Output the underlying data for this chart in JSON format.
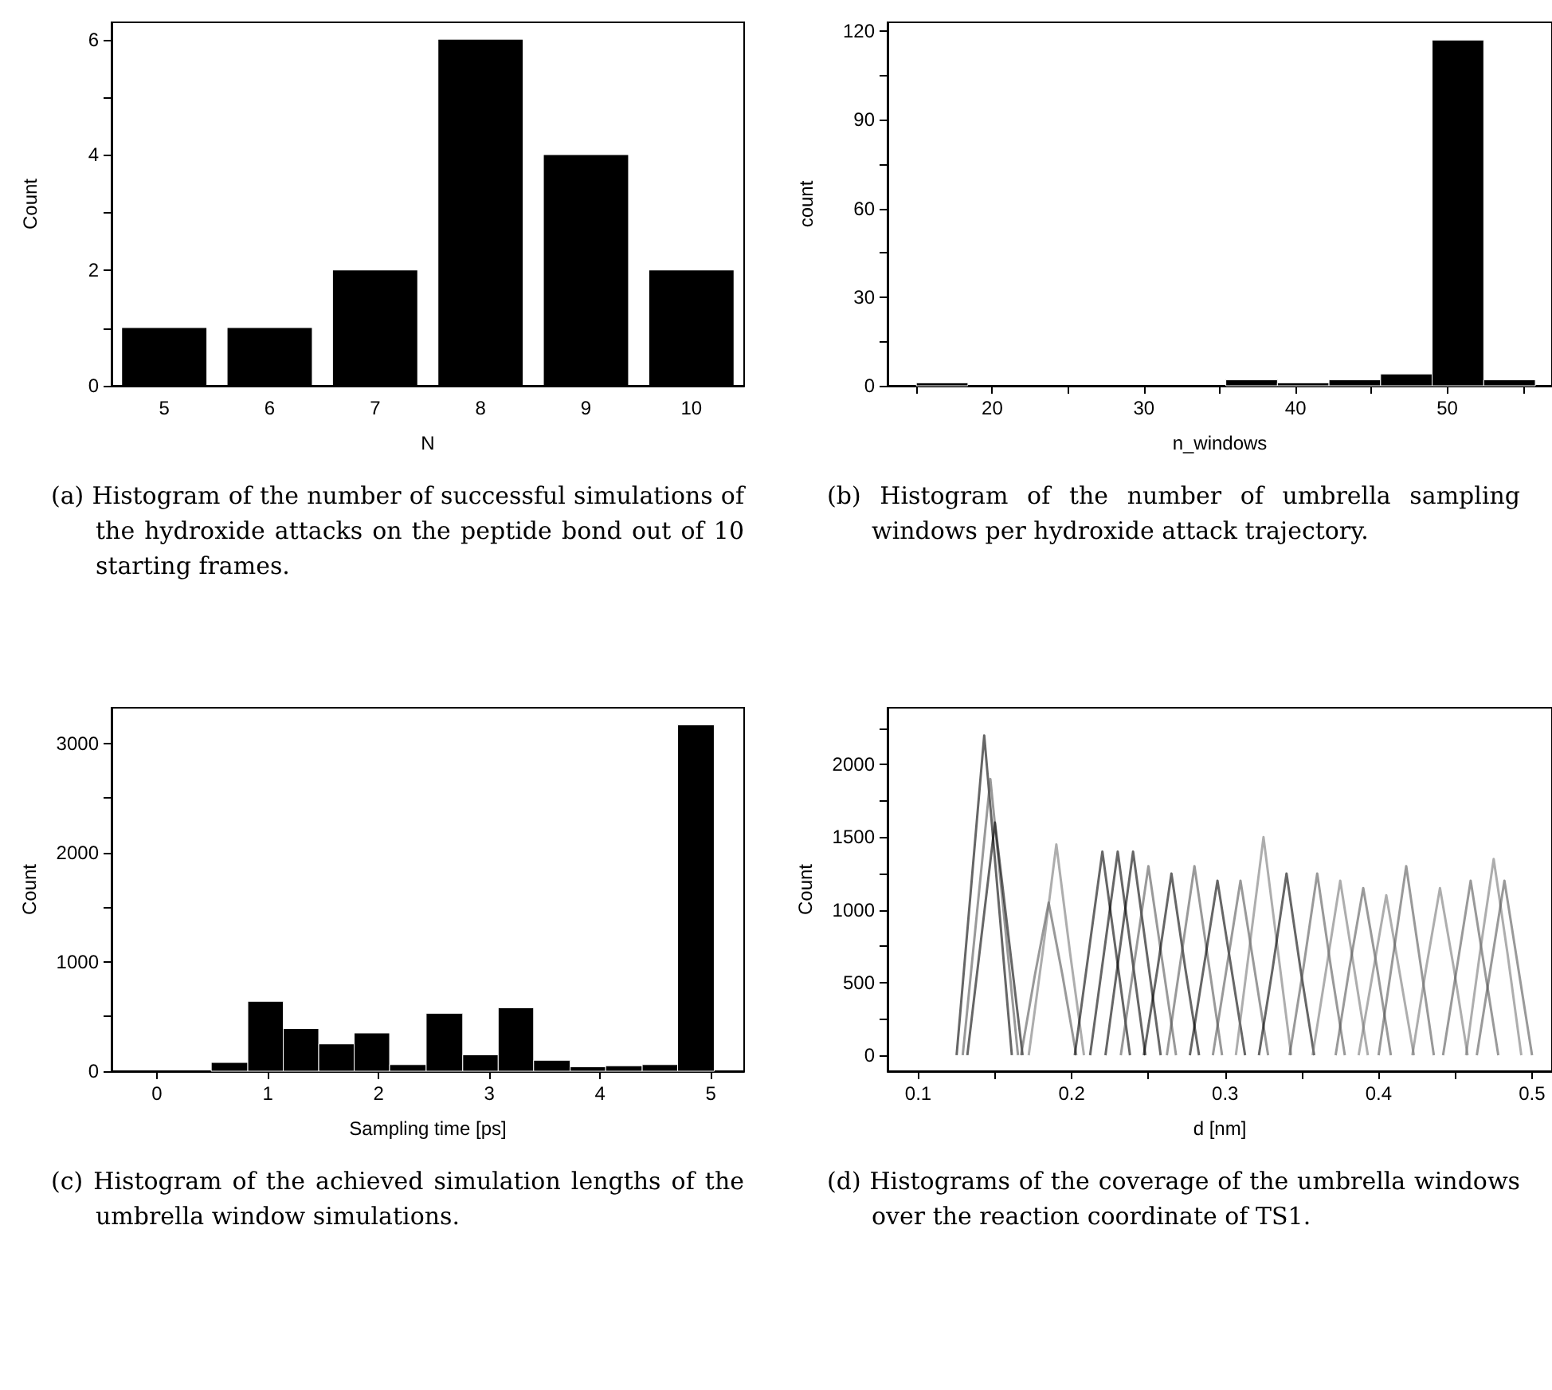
{
  "chart_data": [
    {
      "type": "bar",
      "xlabel": "N",
      "ylabel": "Count",
      "categories": [
        "5",
        "6",
        "7",
        "8",
        "9",
        "10"
      ],
      "values": [
        1,
        1,
        2,
        6,
        4,
        2
      ],
      "color": "#000000",
      "ylim": [
        0,
        6.3
      ],
      "yticks": [
        0,
        {
          "value": 1,
          "label": null
        },
        2,
        {
          "value": 3,
          "label": null
        },
        4,
        {
          "value": 5,
          "label": null
        },
        6
      ],
      "annotations": [
        "(a) Histogram of the number of successful simulations of the hydroxide attacks on the peptide bond out of 10 starting frames."
      ]
    },
    {
      "type": "histogram",
      "xlabel": "n_windows",
      "ylabel": "count",
      "bins": [
        15,
        18.4,
        21.8,
        25.2,
        28.6,
        32,
        35.4,
        38.8,
        42.2,
        45.6,
        49,
        52.4,
        55.8
      ],
      "values": [
        1,
        0,
        0,
        0,
        0,
        0,
        2,
        1,
        2,
        4,
        117,
        2
      ],
      "color": "#000000",
      "xlim": [
        13.1,
        56.9
      ],
      "xticks": [
        {
          "value": 15,
          "label": null
        },
        20,
        {
          "value": 25,
          "label": null
        },
        30,
        {
          "value": 35,
          "label": null
        },
        40,
        {
          "value": 45,
          "label": null
        },
        50,
        {
          "value": 55,
          "label": null
        }
      ],
      "ylim": [
        0,
        123
      ],
      "yticks": [
        0,
        {
          "value": 15,
          "label": null
        },
        30,
        {
          "value": 45,
          "label": null
        },
        60,
        {
          "value": 75,
          "label": null
        },
        90,
        {
          "value": 105,
          "label": null
        },
        120
      ],
      "annotations": [
        "(b) Histogram of the number of umbrella sampling windows per hydroxide attack trajectory."
      ]
    },
    {
      "type": "histogram",
      "xlabel": "Sampling time [ps]",
      "ylabel": "Count",
      "bins": [
        0.49,
        0.82,
        1.14,
        1.46,
        1.78,
        2.1,
        2.43,
        2.76,
        3.08,
        3.4,
        3.73,
        4.05,
        4.38,
        4.7,
        5.03
      ],
      "values": [
        80,
        640,
        390,
        250,
        350,
        60,
        530,
        150,
        580,
        100,
        40,
        50,
        60,
        3170
      ],
      "color": "#000000",
      "xlim": [
        -0.41,
        5.3
      ],
      "xticks": [
        0,
        1,
        2,
        3,
        4,
        5
      ],
      "ylim": [
        0,
        3327
      ],
      "yticks": [
        0,
        {
          "value": 500,
          "label": null
        },
        1000,
        {
          "value": 1500,
          "label": null
        },
        2000,
        {
          "value": 2500,
          "label": null
        },
        3000
      ],
      "annotations": [
        "(c) Histogram of the achieved simulation lengths of the umbrella window simulations."
      ]
    },
    {
      "type": "line",
      "xlabel": "d [nm]",
      "ylabel": "Count",
      "marker": "none",
      "xlim": [
        0.08,
        0.513
      ],
      "xticks": [
        0.1,
        {
          "value": 0.15,
          "label": null
        },
        0.2,
        {
          "value": 0.25,
          "label": null
        },
        0.3,
        {
          "value": 0.35,
          "label": null
        },
        0.4,
        {
          "value": 0.45,
          "label": null
        },
        0.5
      ],
      "ylim": [
        -110,
        2390
      ],
      "yticks": [
        0,
        {
          "value": 250,
          "label": null
        },
        500,
        {
          "value": 750,
          "label": null
        },
        1000,
        {
          "value": 1250,
          "label": null
        },
        1500,
        {
          "value": 1750,
          "label": null
        },
        2000,
        {
          "value": 2250,
          "label": null
        }
      ],
      "annotations": [
        "(d) Histograms of the coverage of the umbrella windows over the reaction coordinate of TS1."
      ],
      "series": [
        {
          "color": "#000000",
          "x": [
            0.125,
            0.134,
            0.143,
            0.152,
            0.161
          ],
          "values": [
            0,
            1100,
            2200,
            1100,
            0
          ]
        },
        {
          "color": "#555555",
          "x": [
            0.129,
            0.138,
            0.147,
            0.156,
            0.165
          ],
          "values": [
            0,
            950,
            1900,
            950,
            0
          ]
        },
        {
          "color": "#000000",
          "x": [
            0.132,
            0.141,
            0.15,
            0.159,
            0.168
          ],
          "values": [
            0,
            800,
            1600,
            800,
            0
          ]
        },
        {
          "color": "#555555",
          "x": [
            0.167,
            0.176,
            0.185,
            0.194,
            0.203
          ],
          "values": [
            0,
            550,
            1050,
            550,
            0
          ]
        },
        {
          "color": "#777777",
          "x": [
            0.172,
            0.181,
            0.19,
            0.199,
            0.208
          ],
          "values": [
            0,
            700,
            1450,
            700,
            0
          ]
        },
        {
          "color": "#000000",
          "x": [
            0.202,
            0.211,
            0.22,
            0.229,
            0.238
          ],
          "values": [
            0,
            700,
            1400,
            700,
            0
          ]
        },
        {
          "color": "#000000",
          "x": [
            0.212,
            0.221,
            0.23,
            0.239,
            0.248
          ],
          "values": [
            0,
            700,
            1400,
            700,
            0
          ]
        },
        {
          "color": "#000000",
          "x": [
            0.222,
            0.231,
            0.24,
            0.249,
            0.258
          ],
          "values": [
            0,
            700,
            1400,
            700,
            0
          ]
        },
        {
          "color": "#555555",
          "x": [
            0.232,
            0.241,
            0.25,
            0.259,
            0.268
          ],
          "values": [
            0,
            650,
            1300,
            650,
            0
          ]
        },
        {
          "color": "#000000",
          "x": [
            0.247,
            0.256,
            0.265,
            0.274,
            0.283
          ],
          "values": [
            0,
            600,
            1250,
            600,
            0
          ]
        },
        {
          "color": "#555555",
          "x": [
            0.262,
            0.271,
            0.28,
            0.289,
            0.298
          ],
          "values": [
            0,
            650,
            1300,
            650,
            0
          ]
        },
        {
          "color": "#000000",
          "x": [
            0.277,
            0.286,
            0.295,
            0.304,
            0.313
          ],
          "values": [
            0,
            600,
            1200,
            600,
            0
          ]
        },
        {
          "color": "#555555",
          "x": [
            0.292,
            0.301,
            0.31,
            0.319,
            0.328
          ],
          "values": [
            0,
            600,
            1200,
            600,
            0
          ]
        },
        {
          "color": "#777777",
          "x": [
            0.307,
            0.316,
            0.325,
            0.334,
            0.343
          ],
          "values": [
            0,
            750,
            1500,
            750,
            0
          ]
        },
        {
          "color": "#000000",
          "x": [
            0.322,
            0.331,
            0.34,
            0.349,
            0.358
          ],
          "values": [
            0,
            600,
            1250,
            600,
            0
          ]
        },
        {
          "color": "#555555",
          "x": [
            0.342,
            0.351,
            0.36,
            0.369,
            0.378
          ],
          "values": [
            0,
            600,
            1250,
            600,
            0
          ]
        },
        {
          "color": "#777777",
          "x": [
            0.357,
            0.366,
            0.375,
            0.384,
            0.393
          ],
          "values": [
            0,
            600,
            1200,
            600,
            0
          ]
        },
        {
          "color": "#555555",
          "x": [
            0.372,
            0.381,
            0.39,
            0.399,
            0.408
          ],
          "values": [
            0,
            600,
            1150,
            600,
            0
          ]
        },
        {
          "color": "#777777",
          "x": [
            0.387,
            0.396,
            0.405,
            0.414,
            0.423
          ],
          "values": [
            0,
            550,
            1100,
            550,
            0
          ]
        },
        {
          "color": "#555555",
          "x": [
            0.4,
            0.409,
            0.418,
            0.427,
            0.436
          ],
          "values": [
            0,
            650,
            1300,
            650,
            0
          ]
        },
        {
          "color": "#777777",
          "x": [
            0.422,
            0.431,
            0.44,
            0.449,
            0.458
          ],
          "values": [
            0,
            600,
            1150,
            600,
            0
          ]
        },
        {
          "color": "#555555",
          "x": [
            0.442,
            0.451,
            0.46,
            0.469,
            0.478
          ],
          "values": [
            0,
            600,
            1200,
            600,
            0
          ]
        },
        {
          "color": "#777777",
          "x": [
            0.457,
            0.466,
            0.475,
            0.484,
            0.493
          ],
          "values": [
            0,
            700,
            1350,
            700,
            0
          ]
        },
        {
          "color": "#555555",
          "x": [
            0.464,
            0.473,
            0.482,
            0.491,
            0.5
          ],
          "values": [
            0,
            600,
            1200,
            600,
            0
          ]
        }
      ]
    }
  ]
}
